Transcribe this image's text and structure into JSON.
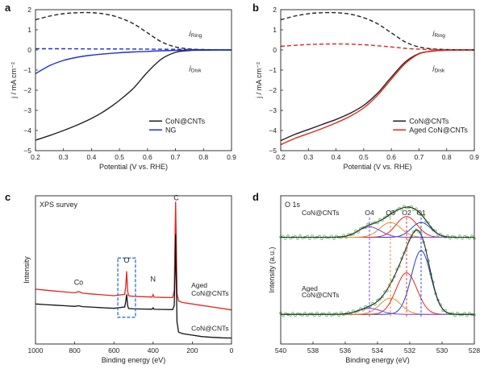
{
  "chart_data": [
    {
      "id": "a",
      "type": "line",
      "panel_label": "a",
      "xlabel": "Potential (V vs. RHE)",
      "ylabel": "j / mA cm⁻²",
      "xlim": [
        0.2,
        0.9
      ],
      "ylim": [
        -5,
        2
      ],
      "xticks": [
        0.2,
        0.3,
        0.4,
        0.5,
        0.6,
        0.7,
        0.8,
        0.9
      ],
      "yticks": [
        -5,
        -4,
        -3,
        -2,
        -1,
        0,
        1,
        2
      ],
      "legend": [
        "CoN@CNTs",
        "NG"
      ],
      "legend_position": "bottom-right",
      "annotations": [
        {
          "text": "j",
          "sub": "Ring",
          "x": 0.75,
          "y": 0.75
        },
        {
          "text": "j",
          "sub": "Disk",
          "x": 0.75,
          "y": -1.0
        }
      ],
      "series": [
        {
          "name": "CoN@CNTs",
          "role": "disk",
          "color": "#222222",
          "dash": false,
          "x": [
            0.2,
            0.25,
            0.3,
            0.35,
            0.4,
            0.45,
            0.5,
            0.55,
            0.6,
            0.65,
            0.7,
            0.75,
            0.8,
            0.85,
            0.9
          ],
          "y": [
            -4.48,
            -4.25,
            -4.0,
            -3.72,
            -3.4,
            -3.0,
            -2.5,
            -1.9,
            -1.1,
            -0.45,
            -0.12,
            -0.03,
            -0.01,
            0.0,
            0.0
          ]
        },
        {
          "name": "CoN@CNTs",
          "role": "ring",
          "color": "#222222",
          "dash": true,
          "x": [
            0.2,
            0.25,
            0.3,
            0.35,
            0.4,
            0.45,
            0.5,
            0.55,
            0.6,
            0.65,
            0.7,
            0.75,
            0.8,
            0.85,
            0.9
          ],
          "y": [
            1.5,
            1.68,
            1.8,
            1.85,
            1.85,
            1.78,
            1.6,
            1.3,
            0.85,
            0.4,
            0.15,
            0.05,
            0.02,
            0.01,
            0.0
          ]
        },
        {
          "name": "NG",
          "role": "disk",
          "color": "#1f2fd6",
          "dash": false,
          "x": [
            0.2,
            0.25,
            0.3,
            0.35,
            0.4,
            0.45,
            0.5,
            0.55,
            0.6,
            0.65,
            0.7,
            0.75,
            0.8,
            0.85,
            0.9
          ],
          "y": [
            -1.18,
            -0.78,
            -0.52,
            -0.36,
            -0.26,
            -0.19,
            -0.14,
            -0.1,
            -0.07,
            -0.04,
            -0.02,
            -0.01,
            0.0,
            0.0,
            0.0
          ]
        },
        {
          "name": "NG",
          "role": "ring",
          "color": "#1f2fd6",
          "dash": true,
          "x": [
            0.2,
            0.3,
            0.4,
            0.5,
            0.6,
            0.7,
            0.8,
            0.9
          ],
          "y": [
            0.06,
            0.06,
            0.05,
            0.05,
            0.04,
            0.03,
            0.01,
            0.0
          ]
        }
      ]
    },
    {
      "id": "b",
      "type": "line",
      "panel_label": "b",
      "xlabel": "Potential (V vs. RHE)",
      "ylabel": "j / mA cm⁻²",
      "xlim": [
        0.2,
        0.9
      ],
      "ylim": [
        -5,
        2
      ],
      "xticks": [
        0.2,
        0.3,
        0.4,
        0.5,
        0.6,
        0.7,
        0.8,
        0.9
      ],
      "yticks": [
        -5,
        -4,
        -3,
        -2,
        -1,
        0,
        1,
        2
      ],
      "legend": [
        "CoN@CNTs",
        "Aged CoN@CNTs"
      ],
      "legend_position": "bottom-right",
      "annotations": [
        {
          "text": "j",
          "sub": "Ring",
          "x": 0.75,
          "y": 0.75
        },
        {
          "text": "j",
          "sub": "Disk",
          "x": 0.75,
          "y": -1.0
        }
      ],
      "series": [
        {
          "name": "CoN@CNTs",
          "role": "disk",
          "color": "#222222",
          "dash": false,
          "x": [
            0.2,
            0.25,
            0.3,
            0.35,
            0.4,
            0.45,
            0.5,
            0.55,
            0.6,
            0.65,
            0.7,
            0.75,
            0.8,
            0.85,
            0.9
          ],
          "y": [
            -4.5,
            -4.2,
            -3.95,
            -3.7,
            -3.45,
            -3.15,
            -2.75,
            -2.15,
            -1.35,
            -0.6,
            -0.18,
            -0.05,
            -0.01,
            0.0,
            0.0
          ]
        },
        {
          "name": "Aged CoN@CNTs",
          "role": "disk",
          "color": "#e3261f",
          "dash": false,
          "x": [
            0.2,
            0.25,
            0.3,
            0.35,
            0.4,
            0.45,
            0.5,
            0.55,
            0.6,
            0.65,
            0.7,
            0.75,
            0.8,
            0.85,
            0.9
          ],
          "y": [
            -4.7,
            -4.4,
            -4.15,
            -3.9,
            -3.62,
            -3.3,
            -2.88,
            -2.25,
            -1.45,
            -0.68,
            -0.2,
            -0.06,
            -0.01,
            0.0,
            0.0
          ]
        },
        {
          "name": "CoN@CNTs",
          "role": "ring",
          "color": "#222222",
          "dash": true,
          "x": [
            0.2,
            0.25,
            0.3,
            0.35,
            0.4,
            0.45,
            0.5,
            0.55,
            0.6,
            0.65,
            0.7,
            0.75,
            0.8,
            0.85,
            0.9
          ],
          "y": [
            1.5,
            1.68,
            1.8,
            1.85,
            1.85,
            1.78,
            1.6,
            1.3,
            0.85,
            0.4,
            0.15,
            0.05,
            0.02,
            0.01,
            0.0
          ]
        },
        {
          "name": "Aged CoN@CNTs",
          "role": "ring",
          "color": "#e3261f",
          "dash": true,
          "x": [
            0.2,
            0.25,
            0.3,
            0.35,
            0.4,
            0.45,
            0.5,
            0.55,
            0.6,
            0.65,
            0.7,
            0.75,
            0.8,
            0.85,
            0.9
          ],
          "y": [
            0.18,
            0.23,
            0.27,
            0.29,
            0.3,
            0.29,
            0.26,
            0.21,
            0.15,
            0.08,
            0.04,
            0.02,
            0.01,
            0.0,
            0.0
          ]
        }
      ]
    },
    {
      "id": "c",
      "type": "line",
      "panel_label": "c",
      "title": "XPS survey",
      "xlabel": "Binding energy (eV)",
      "ylabel": "Intensity",
      "xlim": [
        1000,
        0
      ],
      "ylim": [
        0,
        100
      ],
      "xticks": [
        1000,
        800,
        600,
        400,
        200,
        0
      ],
      "peak_labels": [
        {
          "text": "Co",
          "x": 780,
          "y": 40
        },
        {
          "text": "O",
          "x": 535,
          "y": 55
        },
        {
          "text": "N",
          "x": 400,
          "y": 42
        },
        {
          "text": "C",
          "x": 282,
          "y": 97
        }
      ],
      "highlight_box": {
        "x": [
          580,
          490
        ],
        "y": [
          18,
          58
        ],
        "color": "#1f5fd6"
      },
      "series": [
        {
          "name": "Aged CoN@CNTs",
          "color": "#e3261f",
          "x": [
            1000,
            950,
            900,
            850,
            800,
            780,
            760,
            700,
            650,
            600,
            545,
            540,
            535,
            530,
            525,
            500,
            450,
            405,
            400,
            395,
            350,
            300,
            292,
            288,
            285,
            282,
            278,
            270,
            250,
            200,
            150,
            100,
            50,
            0
          ],
          "y": [
            37.0,
            36.3,
            35.7,
            35.1,
            34.5,
            35.3,
            34.3,
            33.6,
            33.1,
            32.6,
            33.5,
            38.5,
            49.0,
            36.0,
            32.5,
            32.2,
            31.9,
            31.7,
            33.3,
            31.6,
            31.4,
            31.3,
            36.0,
            72.0,
            96.0,
            70.0,
            34.0,
            29.0,
            28.0,
            27.0,
            26.0,
            25.0,
            24.0,
            23.0
          ]
        },
        {
          "name": "CoN@CNTs",
          "color": "#111111",
          "x": [
            1000,
            950,
            900,
            850,
            800,
            780,
            760,
            700,
            650,
            600,
            545,
            540,
            535,
            530,
            525,
            500,
            450,
            405,
            400,
            395,
            350,
            300,
            292,
            288,
            285,
            282,
            278,
            270,
            250,
            200,
            150,
            100,
            50,
            0
          ],
          "y": [
            27.0,
            26.6,
            26.2,
            25.8,
            25.4,
            25.8,
            25.2,
            24.8,
            24.4,
            24.1,
            25.0,
            28.5,
            33.5,
            26.0,
            23.9,
            23.7,
            23.6,
            23.5,
            24.4,
            23.4,
            23.3,
            23.2,
            26.0,
            48.0,
            74.0,
            46.0,
            15.0,
            8.0,
            7.0,
            6.0,
            5.0,
            4.5,
            4.2,
            4.0
          ]
        }
      ],
      "series_labels": [
        {
          "text": "Aged",
          "x": 205,
          "y": 38,
          "color": "#e3261f"
        },
        {
          "text": "CoN@CNTs",
          "x": 205,
          "y": 32.5,
          "color": "#e3261f"
        },
        {
          "text": "CoN@CNTs",
          "x": 205,
          "y": 9,
          "color": "#111111"
        }
      ]
    },
    {
      "id": "d",
      "type": "line",
      "panel_label": "d",
      "title": "O 1s",
      "xlabel": "Binding energy (eV)",
      "ylabel": "Intensity (a.u.)",
      "xlim": [
        540,
        528
      ],
      "ylim": [
        0,
        100
      ],
      "xticks": [
        540,
        538,
        536,
        534,
        532,
        530,
        528
      ],
      "component_labels": [
        {
          "text": "O4",
          "x": 534.5,
          "color": "#7b3fd6"
        },
        {
          "text": "O3",
          "x": 533.2,
          "color": "#e68a2e"
        },
        {
          "text": "O2",
          "x": 532.2,
          "color": "#e3261f"
        },
        {
          "text": "O1",
          "x": 531.3,
          "color": "#1f3fd6"
        }
      ],
      "sample_labels": [
        {
          "text": "CoN@CNTs",
          "x": 538.7,
          "y": 87,
          "color": "#111111"
        },
        {
          "text": "Aged",
          "x": 538.7,
          "y": 36,
          "color": "#e3261f"
        },
        {
          "text": "CoN@CNTs",
          "x": 538.7,
          "y": 31.5,
          "color": "#e3261f"
        }
      ],
      "components": [
        {
          "sample": "CoN@CNTs",
          "name": "O1",
          "color": "#1f3fd6",
          "center": 531.3,
          "height": 10,
          "sigma": 0.6,
          "baseline": 72
        },
        {
          "sample": "CoN@CNTs",
          "name": "O2",
          "color": "#e3261f",
          "center": 532.2,
          "height": 14,
          "sigma": 0.65,
          "baseline": 72
        },
        {
          "sample": "CoN@CNTs",
          "name": "O3",
          "color": "#e68a2e",
          "center": 533.2,
          "height": 10,
          "sigma": 0.65,
          "baseline": 72
        },
        {
          "sample": "CoN@CNTs",
          "name": "O4",
          "color": "#7b3fd6",
          "center": 534.5,
          "height": 7,
          "sigma": 0.7,
          "baseline": 72
        },
        {
          "sample": "Aged CoN@CNTs",
          "name": "O1",
          "color": "#1f3fd6",
          "center": 531.3,
          "height": 43,
          "sigma": 0.6,
          "baseline": 20
        },
        {
          "sample": "Aged CoN@CNTs",
          "name": "O2",
          "color": "#e3261f",
          "center": 532.2,
          "height": 28,
          "sigma": 0.65,
          "baseline": 20
        },
        {
          "sample": "Aged CoN@CNTs",
          "name": "O3",
          "color": "#e68a2e",
          "center": 533.2,
          "height": 11,
          "sigma": 0.65,
          "baseline": 20
        },
        {
          "sample": "Aged CoN@CNTs",
          "name": "O4",
          "color": "#7b3fd6",
          "center": 534.5,
          "height": 4,
          "sigma": 0.7,
          "baseline": 20
        }
      ],
      "envelope_color": "#2a2a2a",
      "data_point_color": "#4caf50"
    }
  ]
}
